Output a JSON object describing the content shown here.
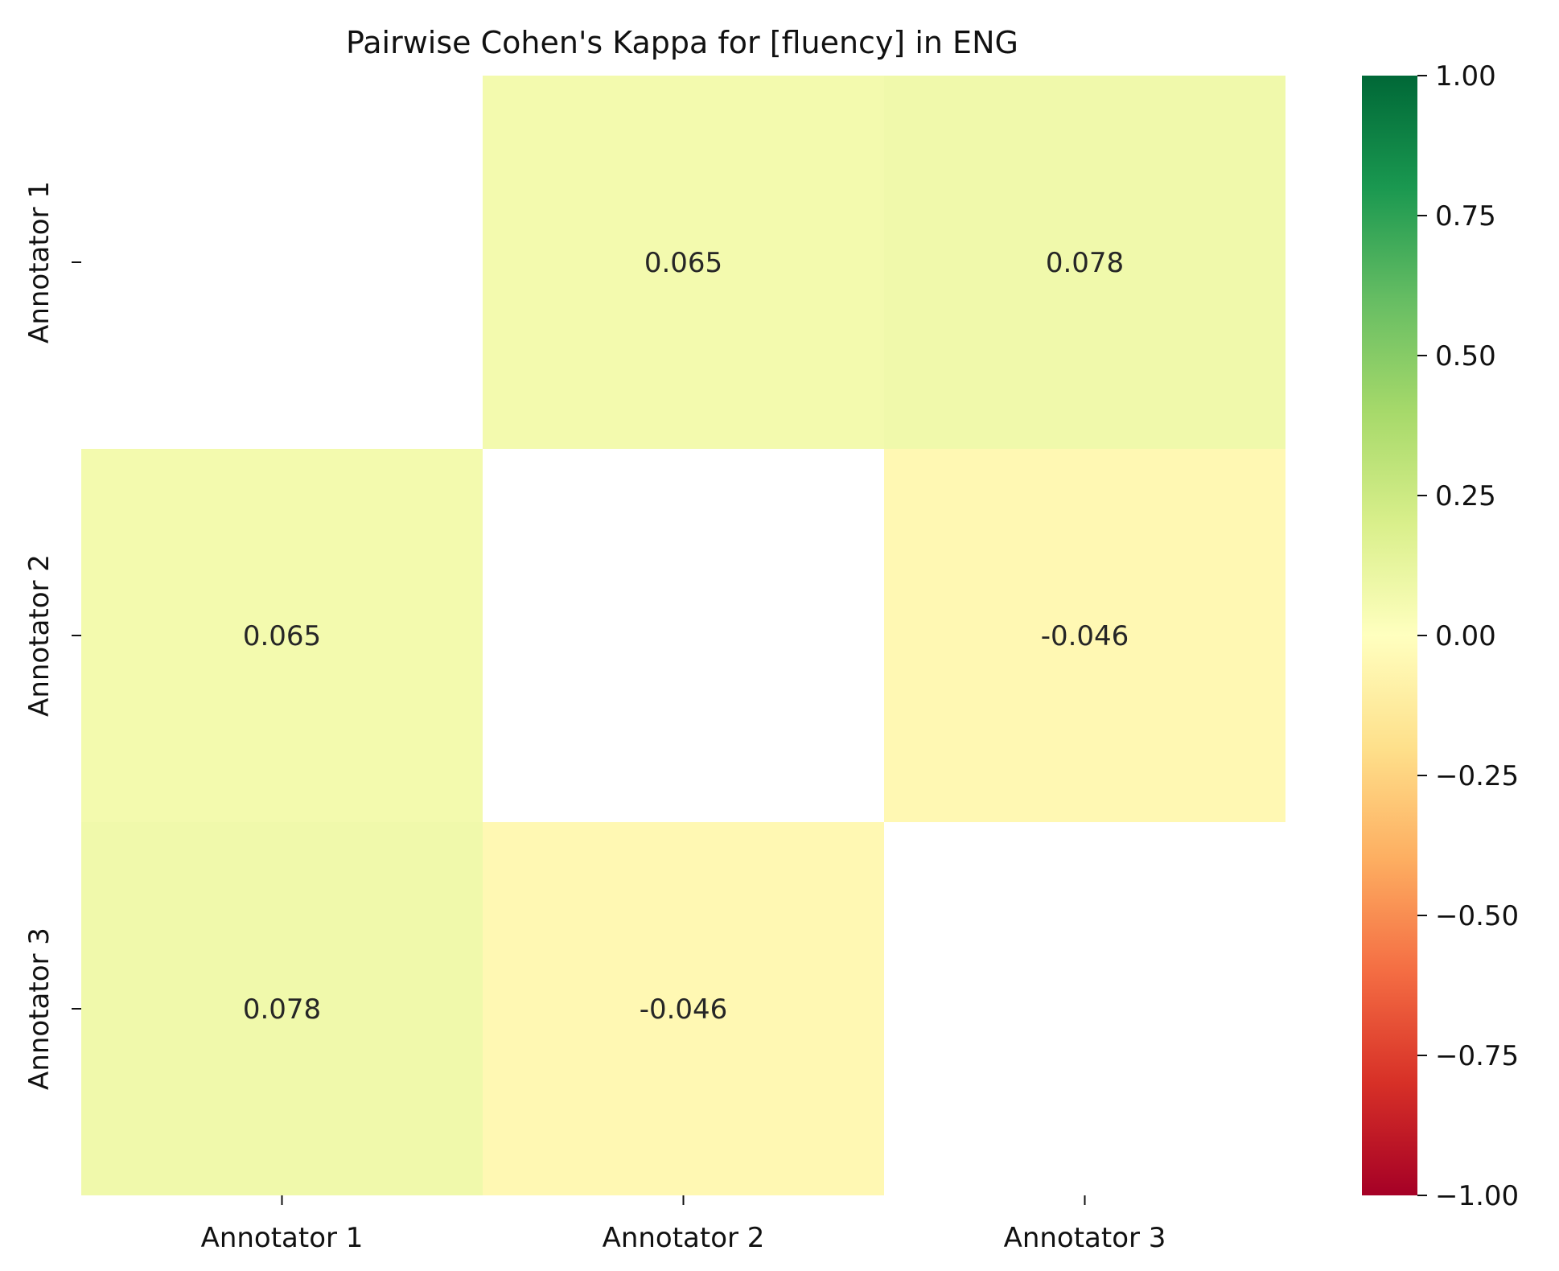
{
  "chart_data": {
    "type": "heatmap",
    "title": "Pairwise Cohen's Kappa for [fluency] in ENG",
    "xlabel": "",
    "ylabel": "",
    "x_categories": [
      "Annotator 1",
      "Annotator 2",
      "Annotator 3"
    ],
    "y_categories": [
      "Annotator 1",
      "Annotator 2",
      "Annotator 3"
    ],
    "values": [
      [
        null,
        0.065,
        0.078
      ],
      [
        0.065,
        null,
        -0.046
      ],
      [
        0.078,
        -0.046,
        null
      ]
    ],
    "cell_labels": [
      [
        null,
        "0.065",
        "0.078"
      ],
      [
        "0.065",
        null,
        "-0.046"
      ],
      [
        "0.078",
        "-0.046",
        null
      ]
    ],
    "colormap": "RdYlGn",
    "vmin": -1.0,
    "vmax": 1.0,
    "colorbar_ticks": [
      1.0,
      0.75,
      0.5,
      0.25,
      0.0,
      -0.25,
      -0.5,
      -0.75,
      -1.0
    ],
    "colorbar_tick_labels": [
      "1.00",
      "0.75",
      "0.50",
      "0.25",
      "0.00",
      "−0.25",
      "−0.50",
      "−0.75",
      "−1.00"
    ],
    "colormap_stops": [
      "#006837",
      "#1a9850",
      "#66bd63",
      "#a6d96a",
      "#d9ef8b",
      "#ffffbf",
      "#fee08b",
      "#fdae61",
      "#f46d43",
      "#d73027",
      "#a50026"
    ],
    "grid": false,
    "legend": "colorbar-right"
  }
}
